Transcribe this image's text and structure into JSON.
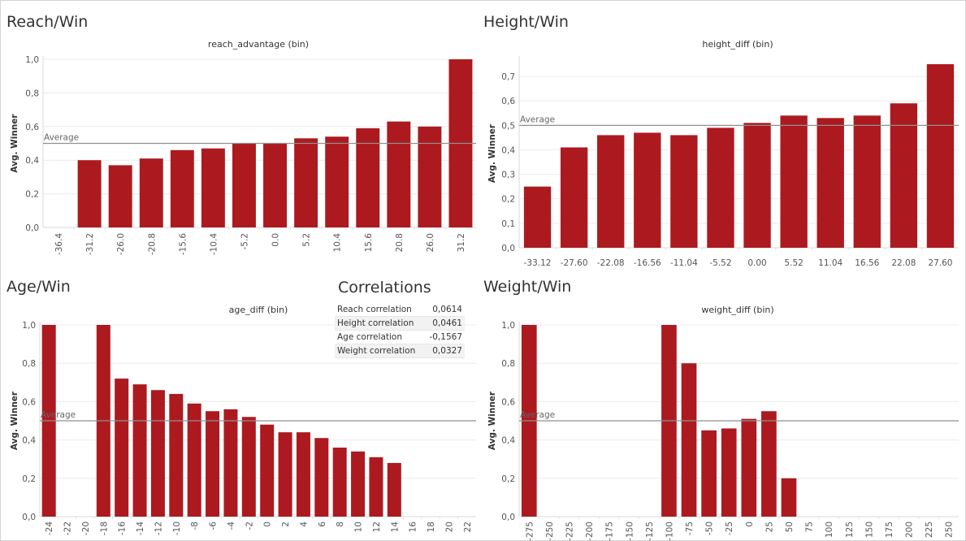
{
  "panels": {
    "reach": {
      "title": "Reach/Win"
    },
    "height": {
      "title": "Height/Win"
    },
    "age": {
      "title": "Age/Win"
    },
    "weight": {
      "title": "Weight/Win"
    },
    "correlations": {
      "title": "Correlations",
      "rows": [
        {
          "label": "Reach correlation",
          "value": "0,0614"
        },
        {
          "label": "Height correlation",
          "value": "0,0461"
        },
        {
          "label": "Age correlation",
          "value": "-0,1567"
        },
        {
          "label": "Weight correlation",
          "value": "0,0327"
        }
      ]
    }
  },
  "colors": {
    "bar": "#ac1a1f",
    "reference_line": "#909090",
    "grid": "#ececec"
  },
  "chart_data": [
    {
      "id": "reach",
      "type": "bar",
      "title": "reach_advantage (bin)",
      "xlabel": "",
      "ylabel": "Avg. Winner",
      "ylim": [
        0,
        1.0
      ],
      "yticks": [
        "0,0",
        "0,2",
        "0,4",
        "0,6",
        "0,8",
        "1,0"
      ],
      "categories": [
        "-36.4",
        "-31.2",
        "-26.0",
        "-20.8",
        "-15.6",
        "-10.4",
        "-5.2",
        "0.0",
        "5.2",
        "10.4",
        "15.6",
        "20.8",
        "26.0",
        "31.2"
      ],
      "values": [
        null,
        0.4,
        0.37,
        0.41,
        0.46,
        0.47,
        0.5,
        0.5,
        0.53,
        0.54,
        0.59,
        0.63,
        0.6,
        1.0
      ],
      "reference_line": {
        "label": "Average",
        "value": 0.5
      },
      "label_rotation": -90,
      "grid": true
    },
    {
      "id": "height",
      "type": "bar",
      "title": "height_diff (bin)",
      "xlabel": "",
      "ylabel": "Avg. Winner",
      "ylim": [
        0,
        0.77
      ],
      "yticks": [
        "0,0",
        "0,1",
        "0,2",
        "0,3",
        "0,4",
        "0,5",
        "0,6",
        "0,7"
      ],
      "categories": [
        "-33.12",
        "-27.60",
        "-22.08",
        "-16.56",
        "-11.04",
        "-5.52",
        "0.00",
        "5.52",
        "11.04",
        "16.56",
        "22.08",
        "27.60"
      ],
      "values": [
        0.25,
        0.41,
        0.46,
        0.47,
        0.46,
        0.49,
        0.51,
        0.54,
        0.53,
        0.54,
        0.59,
        0.75
      ],
      "reference_line": {
        "label": "Average",
        "value": 0.5
      },
      "label_rotation": 0,
      "grid": true
    },
    {
      "id": "age",
      "type": "bar",
      "title": "age_diff (bin)",
      "xlabel": "",
      "ylabel": "Avg. Winner",
      "ylim": [
        0,
        1.0
      ],
      "yticks": [
        "0,0",
        "0,2",
        "0,4",
        "0,6",
        "0,8",
        "1,0"
      ],
      "categories": [
        "-24",
        "-22",
        "-20",
        "-18",
        "-16",
        "-14",
        "-12",
        "-10",
        "-8",
        "-6",
        "-4",
        "-2",
        "0",
        "2",
        "4",
        "6",
        "8",
        "10",
        "12",
        "14",
        "16",
        "18",
        "20",
        "22"
      ],
      "values": [
        1.0,
        null,
        null,
        1.0,
        0.72,
        0.69,
        0.66,
        0.64,
        0.59,
        0.55,
        0.56,
        0.52,
        0.48,
        0.44,
        0.44,
        0.41,
        0.36,
        0.34,
        0.31,
        0.28,
        null,
        null,
        null,
        null
      ],
      "reference_line": {
        "label": "Average",
        "value": 0.5
      },
      "label_rotation": -90,
      "grid": true
    },
    {
      "id": "weight",
      "type": "bar",
      "title": "weight_diff (bin)",
      "xlabel": "",
      "ylabel": "Avg. Winner",
      "ylim": [
        0,
        1.0
      ],
      "yticks": [
        "0,0",
        "0,2",
        "0,4",
        "0,6",
        "0,8",
        "1,0"
      ],
      "categories": [
        "-275",
        "-250",
        "-225",
        "-200",
        "-175",
        "-150",
        "-125",
        "-100",
        "-75",
        "-50",
        "-25",
        "0",
        "25",
        "50",
        "75",
        "100",
        "125",
        "150",
        "175",
        "200",
        "225",
        "250"
      ],
      "values": [
        1.0,
        null,
        null,
        null,
        null,
        null,
        null,
        1.0,
        0.8,
        0.45,
        0.46,
        0.51,
        0.55,
        0.2,
        null,
        null,
        null,
        null,
        null,
        null,
        null,
        null
      ],
      "reference_line": {
        "label": "Average",
        "value": 0.5
      },
      "label_rotation": -90,
      "grid": true
    }
  ]
}
